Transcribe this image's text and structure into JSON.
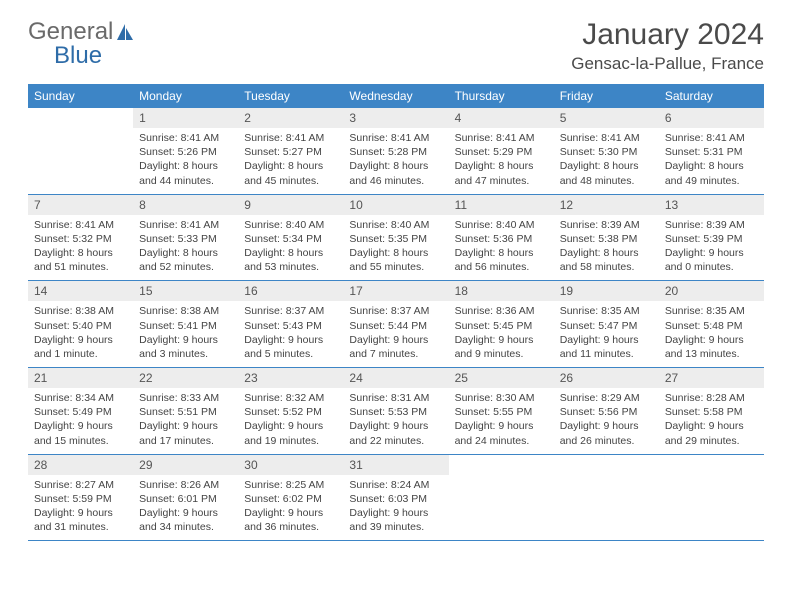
{
  "logo": {
    "general": "General",
    "blue": "Blue"
  },
  "title": "January 2024",
  "location": "Gensac-la-Pallue, France",
  "colors": {
    "header_bg": "#3d85c6",
    "daynum_bg": "#ededed",
    "border": "#3d85c6",
    "text": "#444444",
    "logo_gray": "#6a6a6a",
    "logo_blue": "#2e6ca8"
  },
  "weekdays": [
    "Sunday",
    "Monday",
    "Tuesday",
    "Wednesday",
    "Thursday",
    "Friday",
    "Saturday"
  ],
  "weeks": [
    [
      null,
      {
        "n": "1",
        "sr": "Sunrise: 8:41 AM",
        "ss": "Sunset: 5:26 PM",
        "dl": "Daylight: 8 hours and 44 minutes."
      },
      {
        "n": "2",
        "sr": "Sunrise: 8:41 AM",
        "ss": "Sunset: 5:27 PM",
        "dl": "Daylight: 8 hours and 45 minutes."
      },
      {
        "n": "3",
        "sr": "Sunrise: 8:41 AM",
        "ss": "Sunset: 5:28 PM",
        "dl": "Daylight: 8 hours and 46 minutes."
      },
      {
        "n": "4",
        "sr": "Sunrise: 8:41 AM",
        "ss": "Sunset: 5:29 PM",
        "dl": "Daylight: 8 hours and 47 minutes."
      },
      {
        "n": "5",
        "sr": "Sunrise: 8:41 AM",
        "ss": "Sunset: 5:30 PM",
        "dl": "Daylight: 8 hours and 48 minutes."
      },
      {
        "n": "6",
        "sr": "Sunrise: 8:41 AM",
        "ss": "Sunset: 5:31 PM",
        "dl": "Daylight: 8 hours and 49 minutes."
      }
    ],
    [
      {
        "n": "7",
        "sr": "Sunrise: 8:41 AM",
        "ss": "Sunset: 5:32 PM",
        "dl": "Daylight: 8 hours and 51 minutes."
      },
      {
        "n": "8",
        "sr": "Sunrise: 8:41 AM",
        "ss": "Sunset: 5:33 PM",
        "dl": "Daylight: 8 hours and 52 minutes."
      },
      {
        "n": "9",
        "sr": "Sunrise: 8:40 AM",
        "ss": "Sunset: 5:34 PM",
        "dl": "Daylight: 8 hours and 53 minutes."
      },
      {
        "n": "10",
        "sr": "Sunrise: 8:40 AM",
        "ss": "Sunset: 5:35 PM",
        "dl": "Daylight: 8 hours and 55 minutes."
      },
      {
        "n": "11",
        "sr": "Sunrise: 8:40 AM",
        "ss": "Sunset: 5:36 PM",
        "dl": "Daylight: 8 hours and 56 minutes."
      },
      {
        "n": "12",
        "sr": "Sunrise: 8:39 AM",
        "ss": "Sunset: 5:38 PM",
        "dl": "Daylight: 8 hours and 58 minutes."
      },
      {
        "n": "13",
        "sr": "Sunrise: 8:39 AM",
        "ss": "Sunset: 5:39 PM",
        "dl": "Daylight: 9 hours and 0 minutes."
      }
    ],
    [
      {
        "n": "14",
        "sr": "Sunrise: 8:38 AM",
        "ss": "Sunset: 5:40 PM",
        "dl": "Daylight: 9 hours and 1 minute."
      },
      {
        "n": "15",
        "sr": "Sunrise: 8:38 AM",
        "ss": "Sunset: 5:41 PM",
        "dl": "Daylight: 9 hours and 3 minutes."
      },
      {
        "n": "16",
        "sr": "Sunrise: 8:37 AM",
        "ss": "Sunset: 5:43 PM",
        "dl": "Daylight: 9 hours and 5 minutes."
      },
      {
        "n": "17",
        "sr": "Sunrise: 8:37 AM",
        "ss": "Sunset: 5:44 PM",
        "dl": "Daylight: 9 hours and 7 minutes."
      },
      {
        "n": "18",
        "sr": "Sunrise: 8:36 AM",
        "ss": "Sunset: 5:45 PM",
        "dl": "Daylight: 9 hours and 9 minutes."
      },
      {
        "n": "19",
        "sr": "Sunrise: 8:35 AM",
        "ss": "Sunset: 5:47 PM",
        "dl": "Daylight: 9 hours and 11 minutes."
      },
      {
        "n": "20",
        "sr": "Sunrise: 8:35 AM",
        "ss": "Sunset: 5:48 PM",
        "dl": "Daylight: 9 hours and 13 minutes."
      }
    ],
    [
      {
        "n": "21",
        "sr": "Sunrise: 8:34 AM",
        "ss": "Sunset: 5:49 PM",
        "dl": "Daylight: 9 hours and 15 minutes."
      },
      {
        "n": "22",
        "sr": "Sunrise: 8:33 AM",
        "ss": "Sunset: 5:51 PM",
        "dl": "Daylight: 9 hours and 17 minutes."
      },
      {
        "n": "23",
        "sr": "Sunrise: 8:32 AM",
        "ss": "Sunset: 5:52 PM",
        "dl": "Daylight: 9 hours and 19 minutes."
      },
      {
        "n": "24",
        "sr": "Sunrise: 8:31 AM",
        "ss": "Sunset: 5:53 PM",
        "dl": "Daylight: 9 hours and 22 minutes."
      },
      {
        "n": "25",
        "sr": "Sunrise: 8:30 AM",
        "ss": "Sunset: 5:55 PM",
        "dl": "Daylight: 9 hours and 24 minutes."
      },
      {
        "n": "26",
        "sr": "Sunrise: 8:29 AM",
        "ss": "Sunset: 5:56 PM",
        "dl": "Daylight: 9 hours and 26 minutes."
      },
      {
        "n": "27",
        "sr": "Sunrise: 8:28 AM",
        "ss": "Sunset: 5:58 PM",
        "dl": "Daylight: 9 hours and 29 minutes."
      }
    ],
    [
      {
        "n": "28",
        "sr": "Sunrise: 8:27 AM",
        "ss": "Sunset: 5:59 PM",
        "dl": "Daylight: 9 hours and 31 minutes."
      },
      {
        "n": "29",
        "sr": "Sunrise: 8:26 AM",
        "ss": "Sunset: 6:01 PM",
        "dl": "Daylight: 9 hours and 34 minutes."
      },
      {
        "n": "30",
        "sr": "Sunrise: 8:25 AM",
        "ss": "Sunset: 6:02 PM",
        "dl": "Daylight: 9 hours and 36 minutes."
      },
      {
        "n": "31",
        "sr": "Sunrise: 8:24 AM",
        "ss": "Sunset: 6:03 PM",
        "dl": "Daylight: 9 hours and 39 minutes."
      },
      null,
      null,
      null
    ]
  ]
}
